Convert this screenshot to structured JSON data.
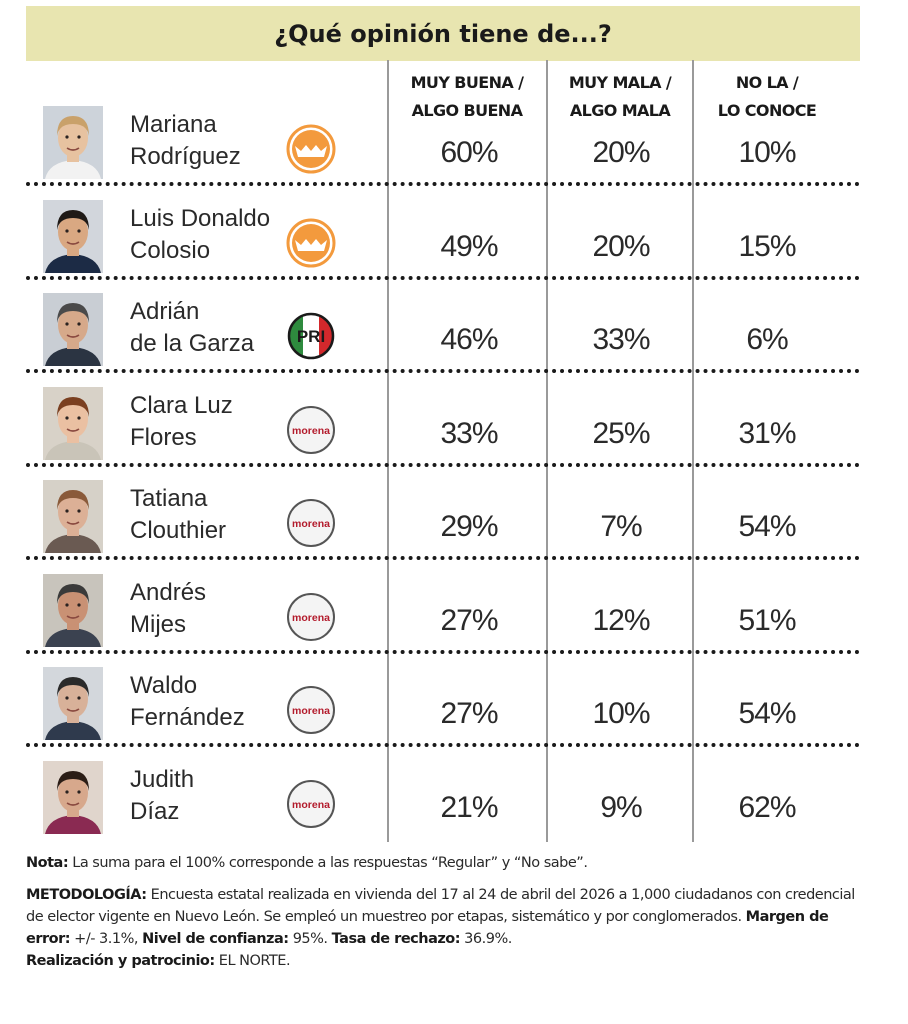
{
  "title": "¿Qué opinión tiene de...?",
  "columns": [
    {
      "line1": "MUY BUENA /",
      "line2": "ALGO BUENA"
    },
    {
      "line1": "MUY MALA /",
      "line2": "ALGO MALA"
    },
    {
      "line1": "NO LA /",
      "line2": "LO CONOCE"
    }
  ],
  "rows": [
    {
      "name1": "Mariana",
      "name2": "Rodríguez",
      "party": "movimiento-ciudadano-logo",
      "good": "60%",
      "bad": "20%",
      "unknown": "10%"
    },
    {
      "name1": "Luis Donaldo",
      "name2": "Colosio",
      "party": "movimiento-ciudadano-logo",
      "good": "49%",
      "bad": "20%",
      "unknown": "15%"
    },
    {
      "name1": "Adrián",
      "name2": "de la Garza",
      "party": "pri-logo",
      "good": "46%",
      "bad": "33%",
      "unknown": "6%"
    },
    {
      "name1": "Clara Luz",
      "name2": "Flores",
      "party": "morena-logo",
      "good": "33%",
      "bad": "25%",
      "unknown": "31%"
    },
    {
      "name1": "Tatiana",
      "name2": "Clouthier",
      "party": "morena-logo",
      "good": "29%",
      "bad": "7%",
      "unknown": "54%"
    },
    {
      "name1": "Andrés",
      "name2": "Mijes",
      "party": "morena-logo",
      "good": "27%",
      "bad": "12%",
      "unknown": "51%"
    },
    {
      "name1": "Waldo",
      "name2": "Fernández",
      "party": "morena-logo",
      "good": "27%",
      "bad": "10%",
      "unknown": "54%"
    },
    {
      "name1": "Judith",
      "name2": "Díaz",
      "party": "morena-logo",
      "good": "21%",
      "bad": "9%",
      "unknown": "62%"
    }
  ],
  "logo_text": {
    "pri": "PRI",
    "morena": "morena"
  },
  "notes": {
    "nota_label": "Nota:",
    "nota_text": "La suma para el 100% corresponde a las respuestas “Regular” y “No sabe”.",
    "metodologia_label": "METODOLOGÍA:",
    "metodologia_text": "Encuesta estatal realizada en vivienda del 17 al 24 de abril del 2026 a 1,000 ciudadanos con credencial de elector vigente en Nuevo León. Se empleó un muestreo por etapas, sistemático y por conglomerados.",
    "margen_label": "Margen de error:",
    "margen_value": "+/- 3.1%,",
    "confianza_label": "Nivel de confianza:",
    "confianza_value": "95%.",
    "rechazo_label": "Tasa de rechazo:",
    "rechazo_value": "36.9%.",
    "realizacion_label": "Realización y patrocinio:",
    "realizacion_value": "EL NORTE."
  },
  "colors": {
    "title_bg": "#e8e5b0",
    "mc_orange": "#f39a3d",
    "pri_green": "#2e8b3e",
    "pri_red": "#d3282c",
    "morena_red": "#b31b2c"
  },
  "chart_data": {
    "type": "table",
    "title": "¿Qué opinión tiene de...?",
    "columns": [
      "MUY BUENA / ALGO BUENA",
      "MUY MALA / ALGO MALA",
      "NO LA / LO CONOCE"
    ],
    "rows": [
      {
        "label": "Mariana Rodríguez",
        "values": [
          60,
          20,
          10
        ]
      },
      {
        "label": "Luis Donaldo Colosio",
        "values": [
          49,
          20,
          15
        ]
      },
      {
        "label": "Adrián de la Garza",
        "values": [
          46,
          33,
          6
        ]
      },
      {
        "label": "Clara Luz Flores",
        "values": [
          33,
          25,
          31
        ]
      },
      {
        "label": "Tatiana Clouthier",
        "values": [
          29,
          7,
          54
        ]
      },
      {
        "label": "Andrés Mijes",
        "values": [
          27,
          12,
          51
        ]
      },
      {
        "label": "Waldo Fernández",
        "values": [
          27,
          10,
          54
        ]
      },
      {
        "label": "Judith Díaz",
        "values": [
          21,
          9,
          62
        ]
      }
    ],
    "unit": "%"
  }
}
